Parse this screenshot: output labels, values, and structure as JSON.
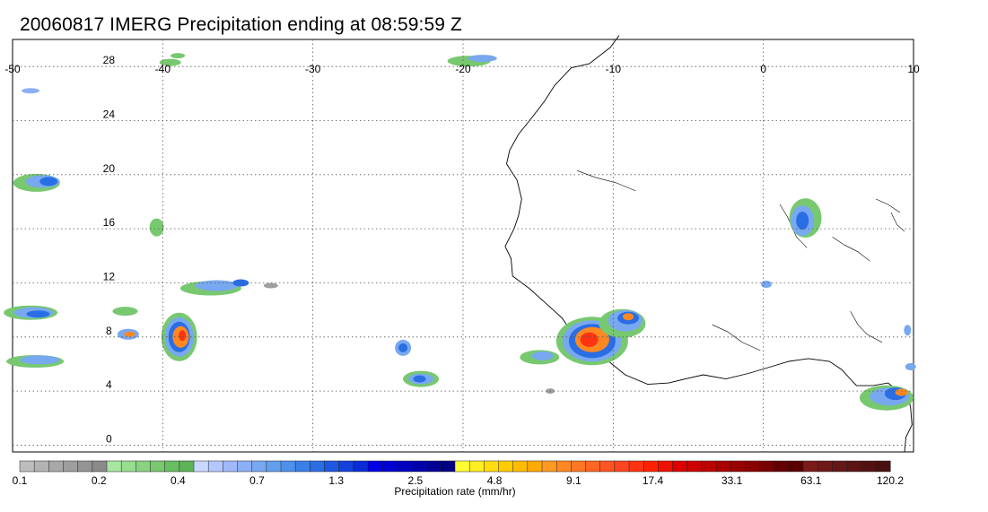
{
  "title": "20060817 IMERG Precipitation ending at 08:59:59 Z",
  "map": {
    "lon_range": [
      -50,
      10
    ],
    "lat_range": [
      -0.5,
      30
    ],
    "lon_ticks": [
      "-50",
      "-40",
      "-30",
      "-20",
      "-10",
      "0",
      "10"
    ],
    "lat_ticks": [
      "28",
      "24",
      "20",
      "16",
      "12",
      "8",
      "4",
      "0"
    ],
    "gridlines": "dotted",
    "region": "Tropical North Atlantic and West Africa"
  },
  "colorbar": {
    "label": "Precipitation rate (mm/hr)",
    "tick_labels": [
      "0.1",
      "0.2",
      "0.4",
      "0.7",
      "1.3",
      "2.5",
      "4.8",
      "9.1",
      "17.4",
      "33.1",
      "63.1",
      "120.2"
    ],
    "colors": [
      "#bdbdbd",
      "#b3b3b3",
      "#a8a8a8",
      "#9e9e9e",
      "#949494",
      "#8a8a8a",
      "#a8e6a1",
      "#98dc90",
      "#88d280",
      "#78c870",
      "#68be62",
      "#5cb456",
      "#c8d8ff",
      "#b4c8ff",
      "#a0b8f8",
      "#8cb0f4",
      "#78a8f0",
      "#62a0ee",
      "#4e90ec",
      "#3a80e8",
      "#2a6ee4",
      "#1e58e0",
      "#1442dc",
      "#0a2cd6",
      "#0000e6",
      "#0000d2",
      "#0000be",
      "#0000aa",
      "#000096",
      "#000082",
      "#ffff33",
      "#ffee22",
      "#ffdd11",
      "#ffcc00",
      "#ffbb00",
      "#ffaa00",
      "#ff9922",
      "#ff8822",
      "#ff7722",
      "#ff6622",
      "#ff5522",
      "#ff4422",
      "#ff3311",
      "#ff2200",
      "#ee1100",
      "#dd0000",
      "#cc0000",
      "#bb0000",
      "#aa0000",
      "#990000",
      "#880000",
      "#770000",
      "#660000",
      "#5a0000",
      "#7a1a1a",
      "#701818",
      "#661616",
      "#5c1414",
      "#521212",
      "#481010"
    ]
  }
}
